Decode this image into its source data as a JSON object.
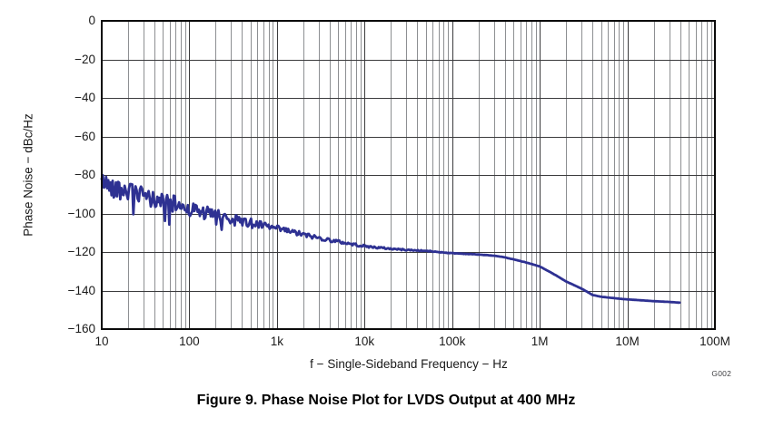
{
  "figure": {
    "caption": "Figure 9. Phase Noise Plot for LVDS Output at 400 MHz",
    "watermark": "G002"
  },
  "chart_data": {
    "type": "line",
    "title": "Figure 9. Phase Noise Plot for LVDS Output at 400 MHz",
    "xlabel": "f − Single-Sideband Frequency − Hz",
    "ylabel": "Phase Noise − dBc/Hz",
    "x_scale": "log",
    "x_min": 10,
    "x_max": 100000000,
    "y_min": -160,
    "y_max": 0,
    "grid": "major horizontals every 20 dB; log minor verticals 2-9 each decade; legend off",
    "x_ticks": [
      {
        "f": 10,
        "label": "10"
      },
      {
        "f": 100,
        "label": "100"
      },
      {
        "f": 1000,
        "label": "1k"
      },
      {
        "f": 10000,
        "label": "10k"
      },
      {
        "f": 100000,
        "label": "100k"
      },
      {
        "f": 1000000,
        "label": "1M"
      },
      {
        "f": 10000000,
        "label": "10M"
      },
      {
        "f": 100000000,
        "label": "100M"
      }
    ],
    "y_ticks": [
      {
        "v": 0,
        "label": "0"
      },
      {
        "v": -20,
        "label": "−20"
      },
      {
        "v": -40,
        "label": "−40"
      },
      {
        "v": -60,
        "label": "−60"
      },
      {
        "v": -80,
        "label": "−80"
      },
      {
        "v": -100,
        "label": "−100"
      },
      {
        "v": -120,
        "label": "−120"
      },
      {
        "v": -140,
        "label": "−140"
      },
      {
        "v": -160,
        "label": "−160"
      }
    ],
    "colors": {
      "curve": "#2e3192"
    },
    "series": [
      {
        "name": "phase_noise_lvds_400MHz",
        "f_start": 10,
        "f_end": 40000000,
        "trend_points": [
          [
            10,
            -83
          ],
          [
            13,
            -86
          ],
          [
            16,
            -87
          ],
          [
            20,
            -88.5
          ],
          [
            25,
            -90
          ],
          [
            30,
            -91.5
          ],
          [
            40,
            -93
          ],
          [
            50,
            -93.5
          ],
          [
            60,
            -94.5
          ],
          [
            80,
            -96
          ],
          [
            100,
            -97.5
          ],
          [
            130,
            -99
          ],
          [
            160,
            -100
          ],
          [
            200,
            -101
          ],
          [
            250,
            -102
          ],
          [
            300,
            -103
          ],
          [
            400,
            -104
          ],
          [
            500,
            -105
          ],
          [
            700,
            -106.5
          ],
          [
            1000,
            -108
          ],
          [
            1300,
            -109
          ],
          [
            1600,
            -110
          ],
          [
            2000,
            -111
          ],
          [
            3000,
            -112.7
          ],
          [
            4000,
            -113.8
          ],
          [
            5000,
            -114.6
          ],
          [
            7000,
            -115.8
          ],
          [
            10000,
            -117
          ],
          [
            15000,
            -117.8
          ],
          [
            20000,
            -118.3
          ],
          [
            30000,
            -118.9
          ],
          [
            50000,
            -119.4
          ],
          [
            70000,
            -120
          ],
          [
            100000,
            -120.6
          ],
          [
            150000,
            -121
          ],
          [
            200000,
            -121.3
          ],
          [
            300000,
            -121.9
          ],
          [
            400000,
            -122.8
          ],
          [
            500000,
            -123.8
          ],
          [
            700000,
            -125.4
          ],
          [
            1000000,
            -127.5
          ],
          [
            1300000,
            -130.3
          ],
          [
            1600000,
            -132.6
          ],
          [
            2000000,
            -135.3
          ],
          [
            2500000,
            -137.3
          ],
          [
            3000000,
            -139
          ],
          [
            3500000,
            -140.7
          ],
          [
            4000000,
            -142.3
          ],
          [
            5000000,
            -143.2
          ],
          [
            6000000,
            -143.6
          ],
          [
            8000000,
            -144.2
          ],
          [
            10000000,
            -144.6
          ],
          [
            15000000,
            -145.1
          ],
          [
            20000000,
            -145.5
          ],
          [
            30000000,
            -145.9
          ],
          [
            40000000,
            -146.3
          ]
        ],
        "noise": {
          "envelope_dB": [
            [
              10,
              4.5
            ],
            [
              30,
              5
            ],
            [
              100,
              4
            ],
            [
              300,
              3
            ],
            [
              1000,
              1.8
            ],
            [
              3000,
              1.1
            ],
            [
              10000,
              0.6
            ],
            [
              30000,
              0.35
            ],
            [
              100000,
              0.15
            ],
            [
              300000,
              0.06
            ],
            [
              1000000,
              0.03
            ],
            [
              40000000,
              0.02
            ]
          ],
          "spike_probability": 0.05,
          "spike_max_freq": 500,
          "seed": 42
        }
      }
    ]
  }
}
